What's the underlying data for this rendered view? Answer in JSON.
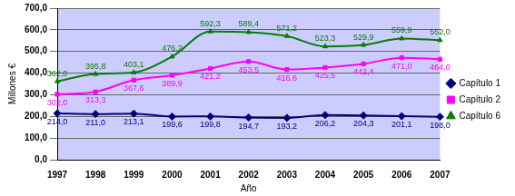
{
  "chart_data": {
    "type": "line",
    "x_label": "Año",
    "y_label": "Millones €",
    "categories": [
      "1997",
      "1998",
      "1999",
      "2000",
      "2001",
      "2002",
      "2003",
      "2004",
      "2005",
      "2006",
      "2007"
    ],
    "series": [
      {
        "name": "Capítulo 1",
        "color": "#000080",
        "marker": "diamond",
        "values": [
          214.0,
          211.0,
          213.1,
          199.6,
          199.8,
          194.7,
          193.2,
          206.2,
          204.3,
          201.1,
          198.0
        ],
        "value_labels": [
          "214,0",
          "211,0",
          "213,1",
          "199,6",
          "199,8",
          "194,7",
          "193,2",
          "206,2",
          "204,3",
          "201,1",
          "198,0"
        ]
      },
      {
        "name": "Capítulo 2",
        "color": "#ff00ff",
        "marker": "square",
        "values": [
          302.0,
          313.3,
          367.6,
          389.9,
          421.2,
          453.5,
          416.6,
          425.5,
          442.4,
          471.0,
          464.0
        ],
        "value_labels": [
          "302,0",
          "313,3",
          "367,6",
          "389,9",
          "421,2",
          "453,5",
          "416,6",
          "425,5",
          "442,4",
          "471,0",
          "464,0"
        ]
      },
      {
        "name": "Capítulo 6",
        "color": "#008000",
        "marker": "triangle",
        "values": [
          362.0,
          395.8,
          403.1,
          476.2,
          592.3,
          589.4,
          571.2,
          523.3,
          529.9,
          559.9,
          552.0
        ],
        "value_labels": [
          "362,0",
          "395,8",
          "403,1",
          "476,2",
          "592,3",
          "589,4",
          "571,2",
          "523,3",
          "529,9",
          "559,9",
          "552,0"
        ]
      }
    ],
    "ylim": [
      0,
      700
    ],
    "yticks": [
      {
        "value": 0,
        "label": "0,0"
      },
      {
        "value": 100,
        "label": "100,0"
      },
      {
        "value": 200,
        "label": "200,0"
      },
      {
        "value": 300,
        "label": "300,0"
      },
      {
        "value": 400,
        "label": "400,0"
      },
      {
        "value": 500,
        "label": "500,0"
      },
      {
        "value": 600,
        "label": "600,0"
      },
      {
        "value": 700,
        "label": "700,0"
      }
    ],
    "grid": true,
    "legend": "right",
    "data_labels": true
  }
}
